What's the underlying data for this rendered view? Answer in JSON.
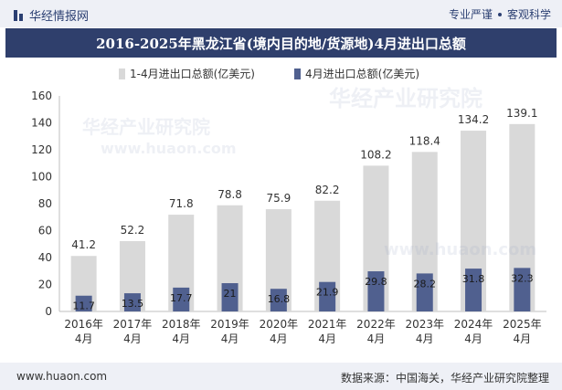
{
  "header": {
    "brand": "华经情报网",
    "slogan_left": "专业严谨",
    "slogan_right": "客观科学"
  },
  "title": "2016-2025年黑龙江省(境内目的地/货源地)4月进出口总额",
  "footer": {
    "website": "www.huaon.com",
    "source": "数据来源：中国海关，华经产业研究院整理"
  },
  "watermark": {
    "text1": "华经产业研究院",
    "text2": "www.huaon.com"
  },
  "colors": {
    "series1": "#d9d9d9",
    "series2": "#50608f",
    "title_bg": "#2f3f6c",
    "bar_bg": "#eef0f6"
  },
  "chart_data": {
    "type": "bar",
    "categories": [
      [
        "2016年",
        "4月"
      ],
      [
        "2017年",
        "4月"
      ],
      [
        "2018年",
        "4月"
      ],
      [
        "2019年",
        "4月"
      ],
      [
        "2020年",
        "4月"
      ],
      [
        "2021年",
        "4月"
      ],
      [
        "2022年",
        "4月"
      ],
      [
        "2023年",
        "4月"
      ],
      [
        "2024年",
        "4月"
      ],
      [
        "2025年",
        "4月"
      ]
    ],
    "series": [
      {
        "name": "1-4月进出口总额(亿美元)",
        "values": [
          41.2,
          52.2,
          71.8,
          78.8,
          75.9,
          82.2,
          108.2,
          118.4,
          134.2,
          139.1
        ]
      },
      {
        "name": "4月进出口总额(亿美元)",
        "values": [
          11.7,
          13.5,
          17.7,
          21,
          16.8,
          21.9,
          29.8,
          28.2,
          31.8,
          32.3
        ]
      }
    ],
    "value_labels": [
      [
        "41.2",
        "52.2",
        "71.8",
        "78.8",
        "75.9",
        "82.2",
        "108.2",
        "118.4",
        "134.2",
        "139.1"
      ],
      [
        "11.7",
        "13.5",
        "17.7",
        "21",
        "16.8",
        "21.9",
        "29.8",
        "28.2",
        "31.8",
        "32.3"
      ]
    ],
    "yticks": [
      "0",
      "20",
      "40",
      "60",
      "80",
      "100",
      "120",
      "140",
      "160"
    ],
    "ylim": [
      0,
      160
    ],
    "legend_position": "top"
  }
}
